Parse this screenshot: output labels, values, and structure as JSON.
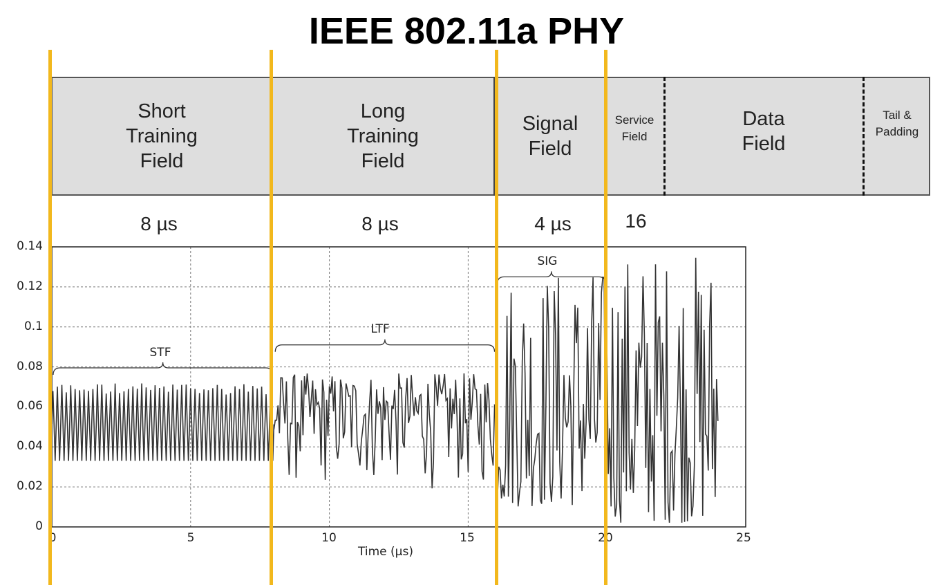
{
  "title": "IEEE 802.11a PHY",
  "fields": {
    "stf": "Short\nTraining\nField",
    "ltf": "Long\nTraining\nField",
    "signal": "Signal\nField",
    "service": "Service\nField",
    "data": "Data\nField",
    "tail": "Tail &\nPadding"
  },
  "durations": {
    "stf": "8 µs",
    "ltf": "8 µs",
    "signal": "4 µs",
    "service": "16"
  },
  "colors": {
    "marker": "#f2b81d",
    "field_fill": "#dedede",
    "signal": "#333333"
  },
  "chart_data": {
    "type": "line",
    "xlabel": "Time (µs)",
    "ylabel": "",
    "xlim": [
      0,
      25
    ],
    "ylim": [
      0,
      0.14
    ],
    "xticks": [
      "0",
      "5",
      "10",
      "15",
      "20",
      "25"
    ],
    "yticks": [
      "0",
      "0.02",
      "0.04",
      "0.06",
      "0.08",
      "0.1",
      "0.12",
      "0.14"
    ],
    "grid": true,
    "segments": [
      {
        "name": "STF",
        "x_range": [
          0,
          8
        ],
        "y_range": [
          0.033,
          0.072
        ]
      },
      {
        "name": "LTF",
        "x_range": [
          8,
          16
        ],
        "y_range": [
          0.017,
          0.077
        ]
      },
      {
        "name": "SIG",
        "x_range": [
          16,
          20
        ],
        "y_range": [
          0.01,
          0.131
        ]
      },
      {
        "name": "",
        "x_range": [
          20,
          24
        ],
        "y_range": [
          0.002,
          0.139
        ]
      }
    ],
    "annotations": [
      "STF",
      "LTF",
      "SIG"
    ],
    "marker_times_us": [
      0,
      8,
      16,
      20
    ]
  }
}
